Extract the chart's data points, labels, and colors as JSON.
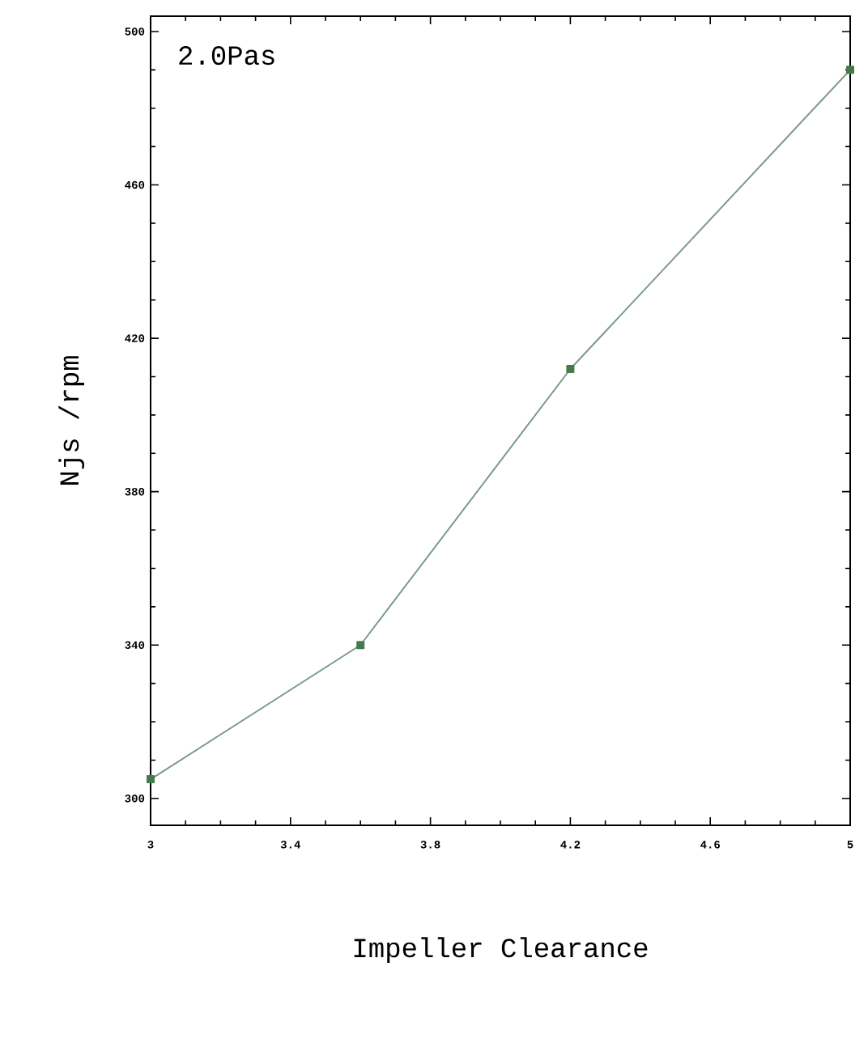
{
  "chart_data": {
    "type": "line",
    "title": "2.0Pas",
    "xlabel": "Impeller Clearance",
    "ylabel": "Njs /rpm",
    "x": [
      3,
      3.6,
      4.2,
      5
    ],
    "series": [
      {
        "color": "#7a9a88",
        "values": [
          305,
          340,
          412,
          490
        ]
      }
    ],
    "xlim": [
      3,
      5
    ],
    "ylim": [
      293,
      504
    ],
    "xticks": [
      3,
      3.4,
      3.8,
      4.2,
      4.6,
      5
    ],
    "yticks": [
      300,
      340,
      380,
      420,
      460,
      500
    ],
    "marker": "square",
    "line_style": "solid"
  }
}
